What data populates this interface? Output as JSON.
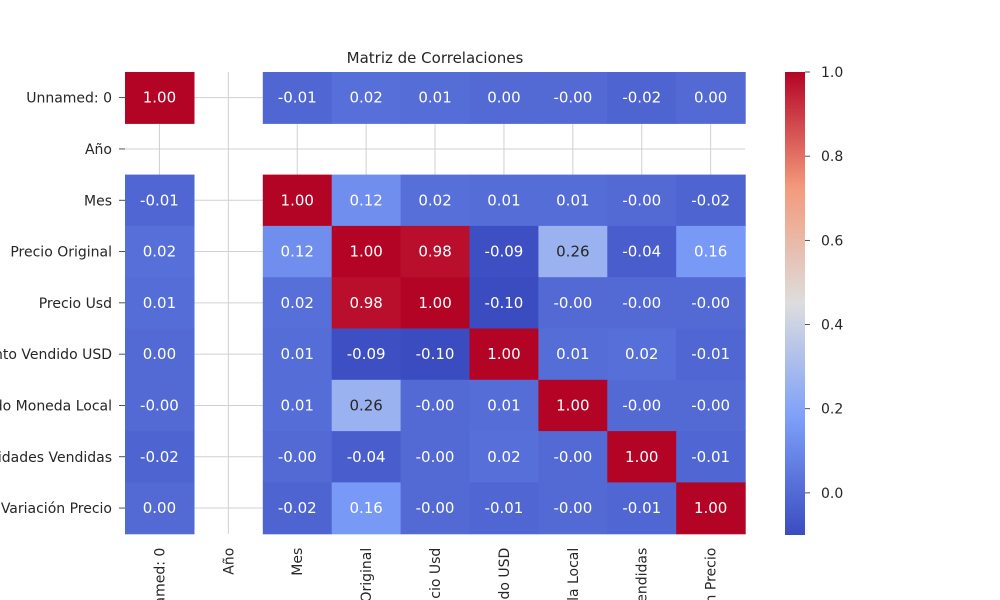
{
  "chart_data": {
    "type": "heatmap",
    "title": "Matriz de Correlaciones",
    "row_labels": [
      "Unnamed: 0",
      "Año",
      "Mes",
      "Precio Original",
      "Precio Usd",
      "nto Vendido USD",
      "do Moneda Local",
      "idades Vendidas",
      "Variación Precio"
    ],
    "col_labels": [
      "named: 0",
      "Año",
      "Mes",
      "Original",
      "cio Usd",
      "do USD",
      "la Local",
      "endidas",
      "n Precio"
    ],
    "values": [
      [
        1.0,
        null,
        -0.01,
        0.02,
        0.01,
        0.0,
        -0.0,
        -0.02,
        0.0
      ],
      [
        null,
        null,
        null,
        null,
        null,
        null,
        null,
        null,
        null
      ],
      [
        -0.01,
        null,
        1.0,
        0.12,
        0.02,
        0.01,
        0.01,
        -0.0,
        -0.02
      ],
      [
        0.02,
        null,
        0.12,
        1.0,
        0.98,
        -0.09,
        0.26,
        -0.04,
        0.16
      ],
      [
        0.01,
        null,
        0.02,
        0.98,
        1.0,
        -0.1,
        -0.0,
        -0.0,
        -0.0
      ],
      [
        0.0,
        null,
        0.01,
        -0.09,
        -0.1,
        1.0,
        0.01,
        0.02,
        -0.01
      ],
      [
        -0.0,
        null,
        0.01,
        0.26,
        -0.0,
        0.01,
        1.0,
        -0.0,
        -0.0
      ],
      [
        -0.02,
        null,
        -0.0,
        -0.04,
        -0.0,
        0.02,
        -0.0,
        1.0,
        -0.01
      ],
      [
        0.0,
        null,
        -0.02,
        0.16,
        -0.0,
        -0.01,
        -0.0,
        -0.01,
        1.0
      ]
    ],
    "cell_labels": [
      [
        "1.00",
        "",
        "-0.01",
        "0.02",
        "0.01",
        "0.00",
        "-0.00",
        "-0.02",
        "0.00"
      ],
      [
        "",
        "",
        "",
        "",
        "",
        "",
        "",
        "",
        ""
      ],
      [
        "-0.01",
        "",
        "1.00",
        "0.12",
        "0.02",
        "0.01",
        "0.01",
        "-0.00",
        "-0.02"
      ],
      [
        "0.02",
        "",
        "0.12",
        "1.00",
        "0.98",
        "-0.09",
        "0.26",
        "-0.04",
        "0.16"
      ],
      [
        "0.01",
        "",
        "0.02",
        "0.98",
        "1.00",
        "-0.10",
        "-0.00",
        "-0.00",
        "-0.00"
      ],
      [
        "0.00",
        "",
        "0.01",
        "-0.09",
        "-0.10",
        "1.00",
        "0.01",
        "0.02",
        "-0.01"
      ],
      [
        "-0.00",
        "",
        "0.01",
        "0.26",
        "-0.00",
        "0.01",
        "1.00",
        "-0.00",
        "-0.00"
      ],
      [
        "-0.02",
        "",
        "-0.00",
        "-0.04",
        "-0.00",
        "0.02",
        "-0.00",
        "1.00",
        "-0.01"
      ],
      [
        "0.00",
        "",
        "-0.02",
        "0.16",
        "-0.00",
        "-0.01",
        "-0.00",
        "-0.01",
        "1.00"
      ]
    ],
    "colormap": "coolwarm",
    "vmin": -0.1,
    "vmax": 1.0,
    "colorbar_ticks": [
      0.0,
      0.2,
      0.4,
      0.6,
      0.8,
      1.0
    ],
    "colorbar_tick_labels": [
      "0.0",
      "0.2",
      "0.4",
      "0.6",
      "0.8",
      "1.0"
    ],
    "grid": true
  }
}
